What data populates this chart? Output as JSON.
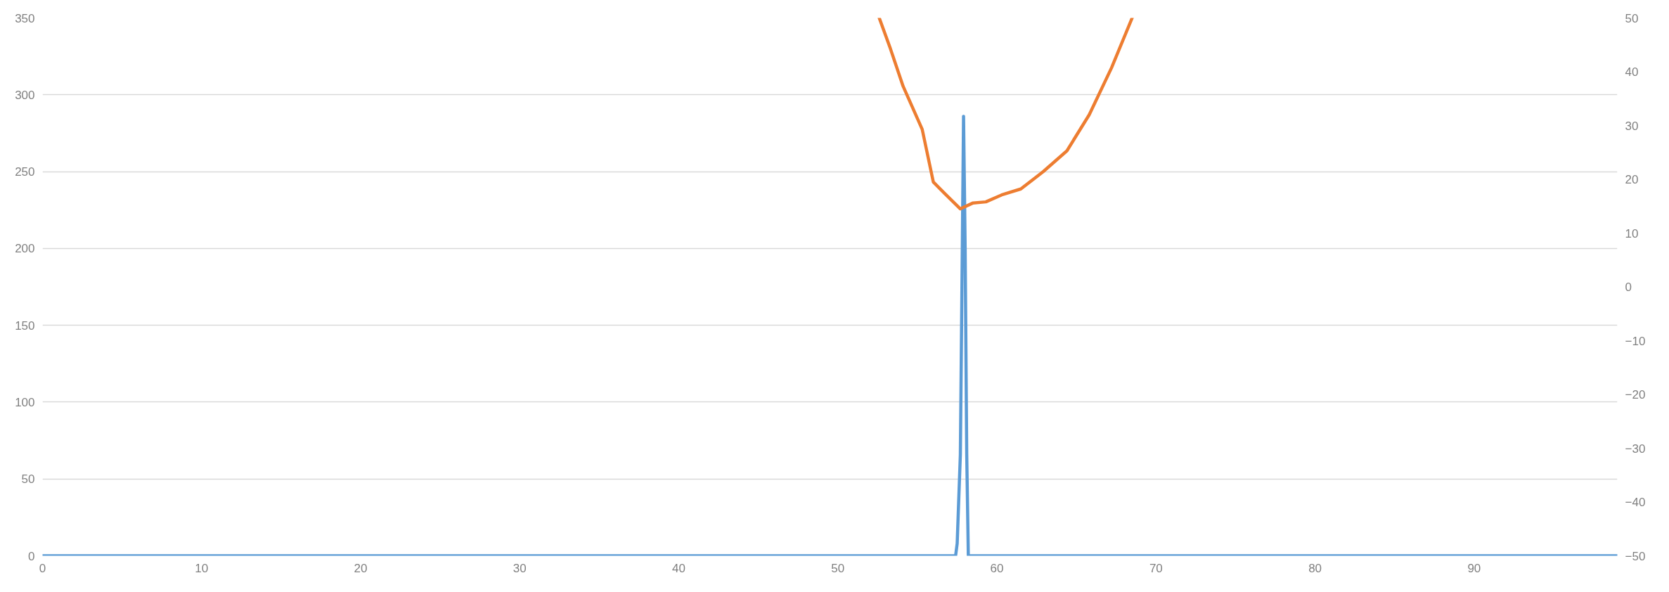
{
  "chart_data": {
    "type": "line",
    "xlim": [
      0,
      99
    ],
    "xticks": [
      0,
      10,
      20,
      30,
      40,
      50,
      60,
      70,
      80,
      90
    ],
    "ylim": [
      0,
      350
    ],
    "yticks": [
      0,
      50,
      100,
      150,
      200,
      250,
      300,
      350
    ],
    "y2lim": [
      -50,
      50
    ],
    "y2ticks": [
      -50,
      -40,
      -30,
      -20,
      -10,
      0,
      10,
      20,
      30,
      40,
      50
    ],
    "grid": "y",
    "series": [
      {
        "color": "#5b9bd5",
        "x": [
          0,
          57.4,
          57.5,
          57.7,
          57.9,
          58.0,
          58.1,
          58.2,
          99
        ],
        "values": [
          0,
          0,
          8,
          66,
          286,
          201,
          66,
          0,
          0
        ]
      },
      {
        "color": "#ed7d31",
        "axis": "y2",
        "x": [
          52.6,
          53.3,
          54.1,
          55.3,
          56.0,
          56.7,
          57.7,
          58.5,
          59.3,
          60.3,
          61.5,
          62.9,
          64.4,
          65.8,
          67.2,
          68.5
        ],
        "values": [
          50.0,
          44.3,
          37.3,
          29.3,
          19.5,
          17.4,
          14.5,
          15.6,
          15.8,
          17.1,
          18.2,
          21.4,
          25.3,
          32.0,
          40.7,
          50.0
        ]
      }
    ]
  }
}
